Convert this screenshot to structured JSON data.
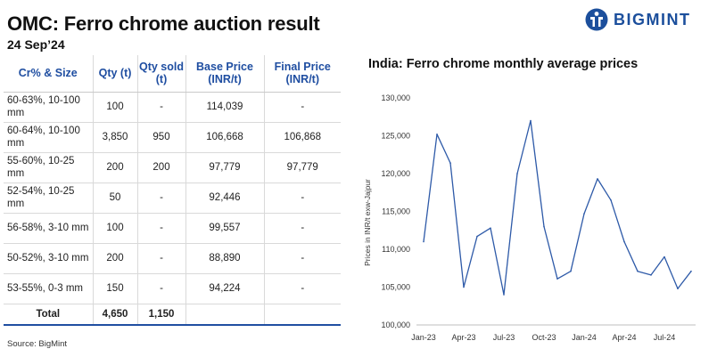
{
  "header": {
    "title": "OMC: Ferro chrome auction result",
    "date": "24 Sep’24",
    "logo_text": "BIGMINT"
  },
  "table": {
    "columns": [
      "Cr% & Size",
      "Qty (t)",
      "Qty sold (t)",
      "Base Price (INR/t)",
      "Final Price (INR/t)"
    ],
    "rows": [
      [
        "60-63%, 10-100 mm",
        "100",
        "-",
        "114,039",
        "-"
      ],
      [
        "60-64%, 10-100 mm",
        "3,850",
        "950",
        "106,668",
        "106,868"
      ],
      [
        "55-60%, 10-25 mm",
        "200",
        "200",
        "97,779",
        "97,779"
      ],
      [
        "52-54%, 10-25 mm",
        "50",
        "-",
        "92,446",
        "-"
      ],
      [
        "56-58%, 3-10 mm",
        "100",
        "-",
        "99,557",
        "-"
      ],
      [
        "50-52%, 3-10 mm",
        "200",
        "-",
        "88,890",
        "-"
      ],
      [
        "53-55%, 0-3 mm",
        "150",
        "-",
        "94,224",
        "-"
      ]
    ],
    "total": [
      "Total",
      "4,650",
      "1,150",
      "",
      ""
    ]
  },
  "source": "Source: BigMint",
  "colors": {
    "header_blue": "#1f4ea1",
    "line": "#2e5aa8",
    "logo": "#1c4f9c"
  },
  "chart_data": {
    "type": "line",
    "title": "India: Ferro chrome monthly average prices",
    "ylabel": "Prices in INR/t exw-Jajpur",
    "xlabel": "",
    "ylim": [
      100000,
      130000
    ],
    "yticks": [
      100000,
      105000,
      110000,
      115000,
      120000,
      125000,
      130000
    ],
    "ytick_labels": [
      "100,000",
      "105,000",
      "110,000",
      "115,000",
      "120,000",
      "125,000",
      "130,000"
    ],
    "xtick_labels": [
      "Jan-23",
      "Apr-23",
      "Jul-23",
      "Oct-23",
      "Jan-24",
      "Apr-24",
      "Jul-24"
    ],
    "xtick_index": [
      0,
      3,
      6,
      9,
      12,
      15,
      18
    ],
    "grid": false,
    "x": [
      "Jan-23",
      "Feb-23",
      "Mar-23",
      "Apr-23",
      "May-23",
      "Jun-23",
      "Jul-23",
      "Aug-23",
      "Sep-23",
      "Oct-23",
      "Nov-23",
      "Dec-23",
      "Jan-24",
      "Feb-24",
      "Mar-24",
      "Apr-24",
      "May-24",
      "Jun-24",
      "Jul-24",
      "Aug-24",
      "Sep-24"
    ],
    "series": [
      {
        "values": [
          111000,
          125200,
          121400,
          105000,
          111700,
          112800,
          104000,
          120000,
          127000,
          113000,
          106100,
          107100,
          114700,
          119300,
          116500,
          111000,
          107100,
          106600,
          109000,
          104800,
          107100
        ]
      }
    ]
  }
}
